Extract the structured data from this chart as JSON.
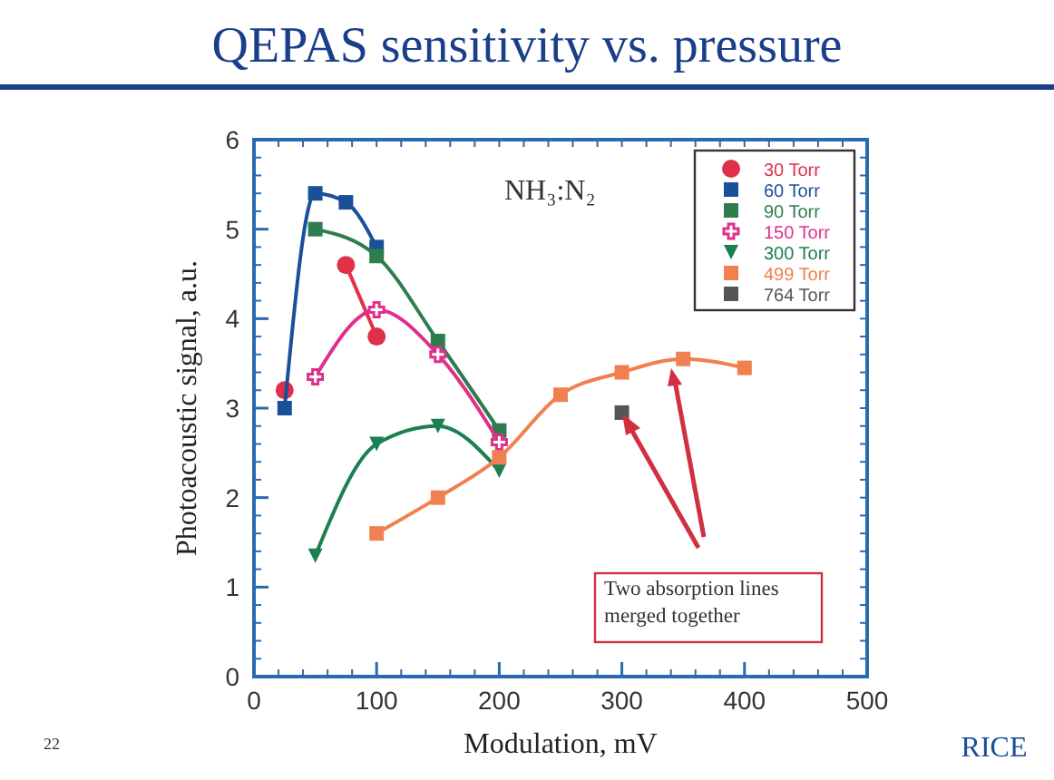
{
  "chart_data": {
    "type": "line",
    "title": "QEPAS sensitivity vs. pressure",
    "xlabel": "Modulation, mV",
    "ylabel": "Photoacoustic signal, a.u.",
    "xlim": [
      0,
      500
    ],
    "xticks": [
      0,
      100,
      200,
      300,
      400,
      500
    ],
    "ylim": [
      0,
      6
    ],
    "yticks": [
      0,
      1,
      2,
      3,
      4,
      5,
      6
    ],
    "grid": false,
    "legend": "top right",
    "line_style": "solid",
    "series": [
      {
        "name": "30 Torr",
        "color": "#e0304a",
        "marker": "circle",
        "x": [
          25,
          50,
          75,
          100
        ],
        "values": [
          3.2,
          null,
          4.6,
          3.8
        ]
      },
      {
        "name": "60 Torr",
        "color": "#1a4f9a",
        "marker": "square",
        "x": [
          25,
          50,
          75,
          100
        ],
        "values": [
          3.0,
          5.4,
          5.3,
          4.8
        ]
      },
      {
        "name": "90 Torr",
        "color": "#2e7d4f",
        "marker": "square",
        "x": [
          50,
          100,
          150,
          200
        ],
        "values": [
          5.0,
          4.7,
          3.75,
          2.75
        ]
      },
      {
        "name": "150 Torr",
        "color": "#e0308a",
        "marker": "cross",
        "x": [
          50,
          100,
          150,
          200
        ],
        "values": [
          3.35,
          4.1,
          3.6,
          2.62
        ]
      },
      {
        "name": "300 Torr",
        "color": "#1a8050",
        "marker": "triangle",
        "x": [
          50,
          100,
          150,
          200
        ],
        "values": [
          1.35,
          2.6,
          2.8,
          2.3
        ]
      },
      {
        "name": "499 Torr",
        "color": "#f08050",
        "marker": "square",
        "x": [
          100,
          150,
          200,
          250,
          300,
          350,
          400
        ],
        "values": [
          1.6,
          2.0,
          2.45,
          3.15,
          3.4,
          3.55,
          3.45
        ]
      },
      {
        "name": "764 Torr",
        "color": "#555555",
        "marker": "square",
        "type": "scatter",
        "x": [
          300
        ],
        "values": [
          2.95
        ]
      }
    ],
    "annotations": [
      "NH₃:N₂",
      "Two absorption lines merged together",
      "22",
      "RICE"
    ]
  }
}
